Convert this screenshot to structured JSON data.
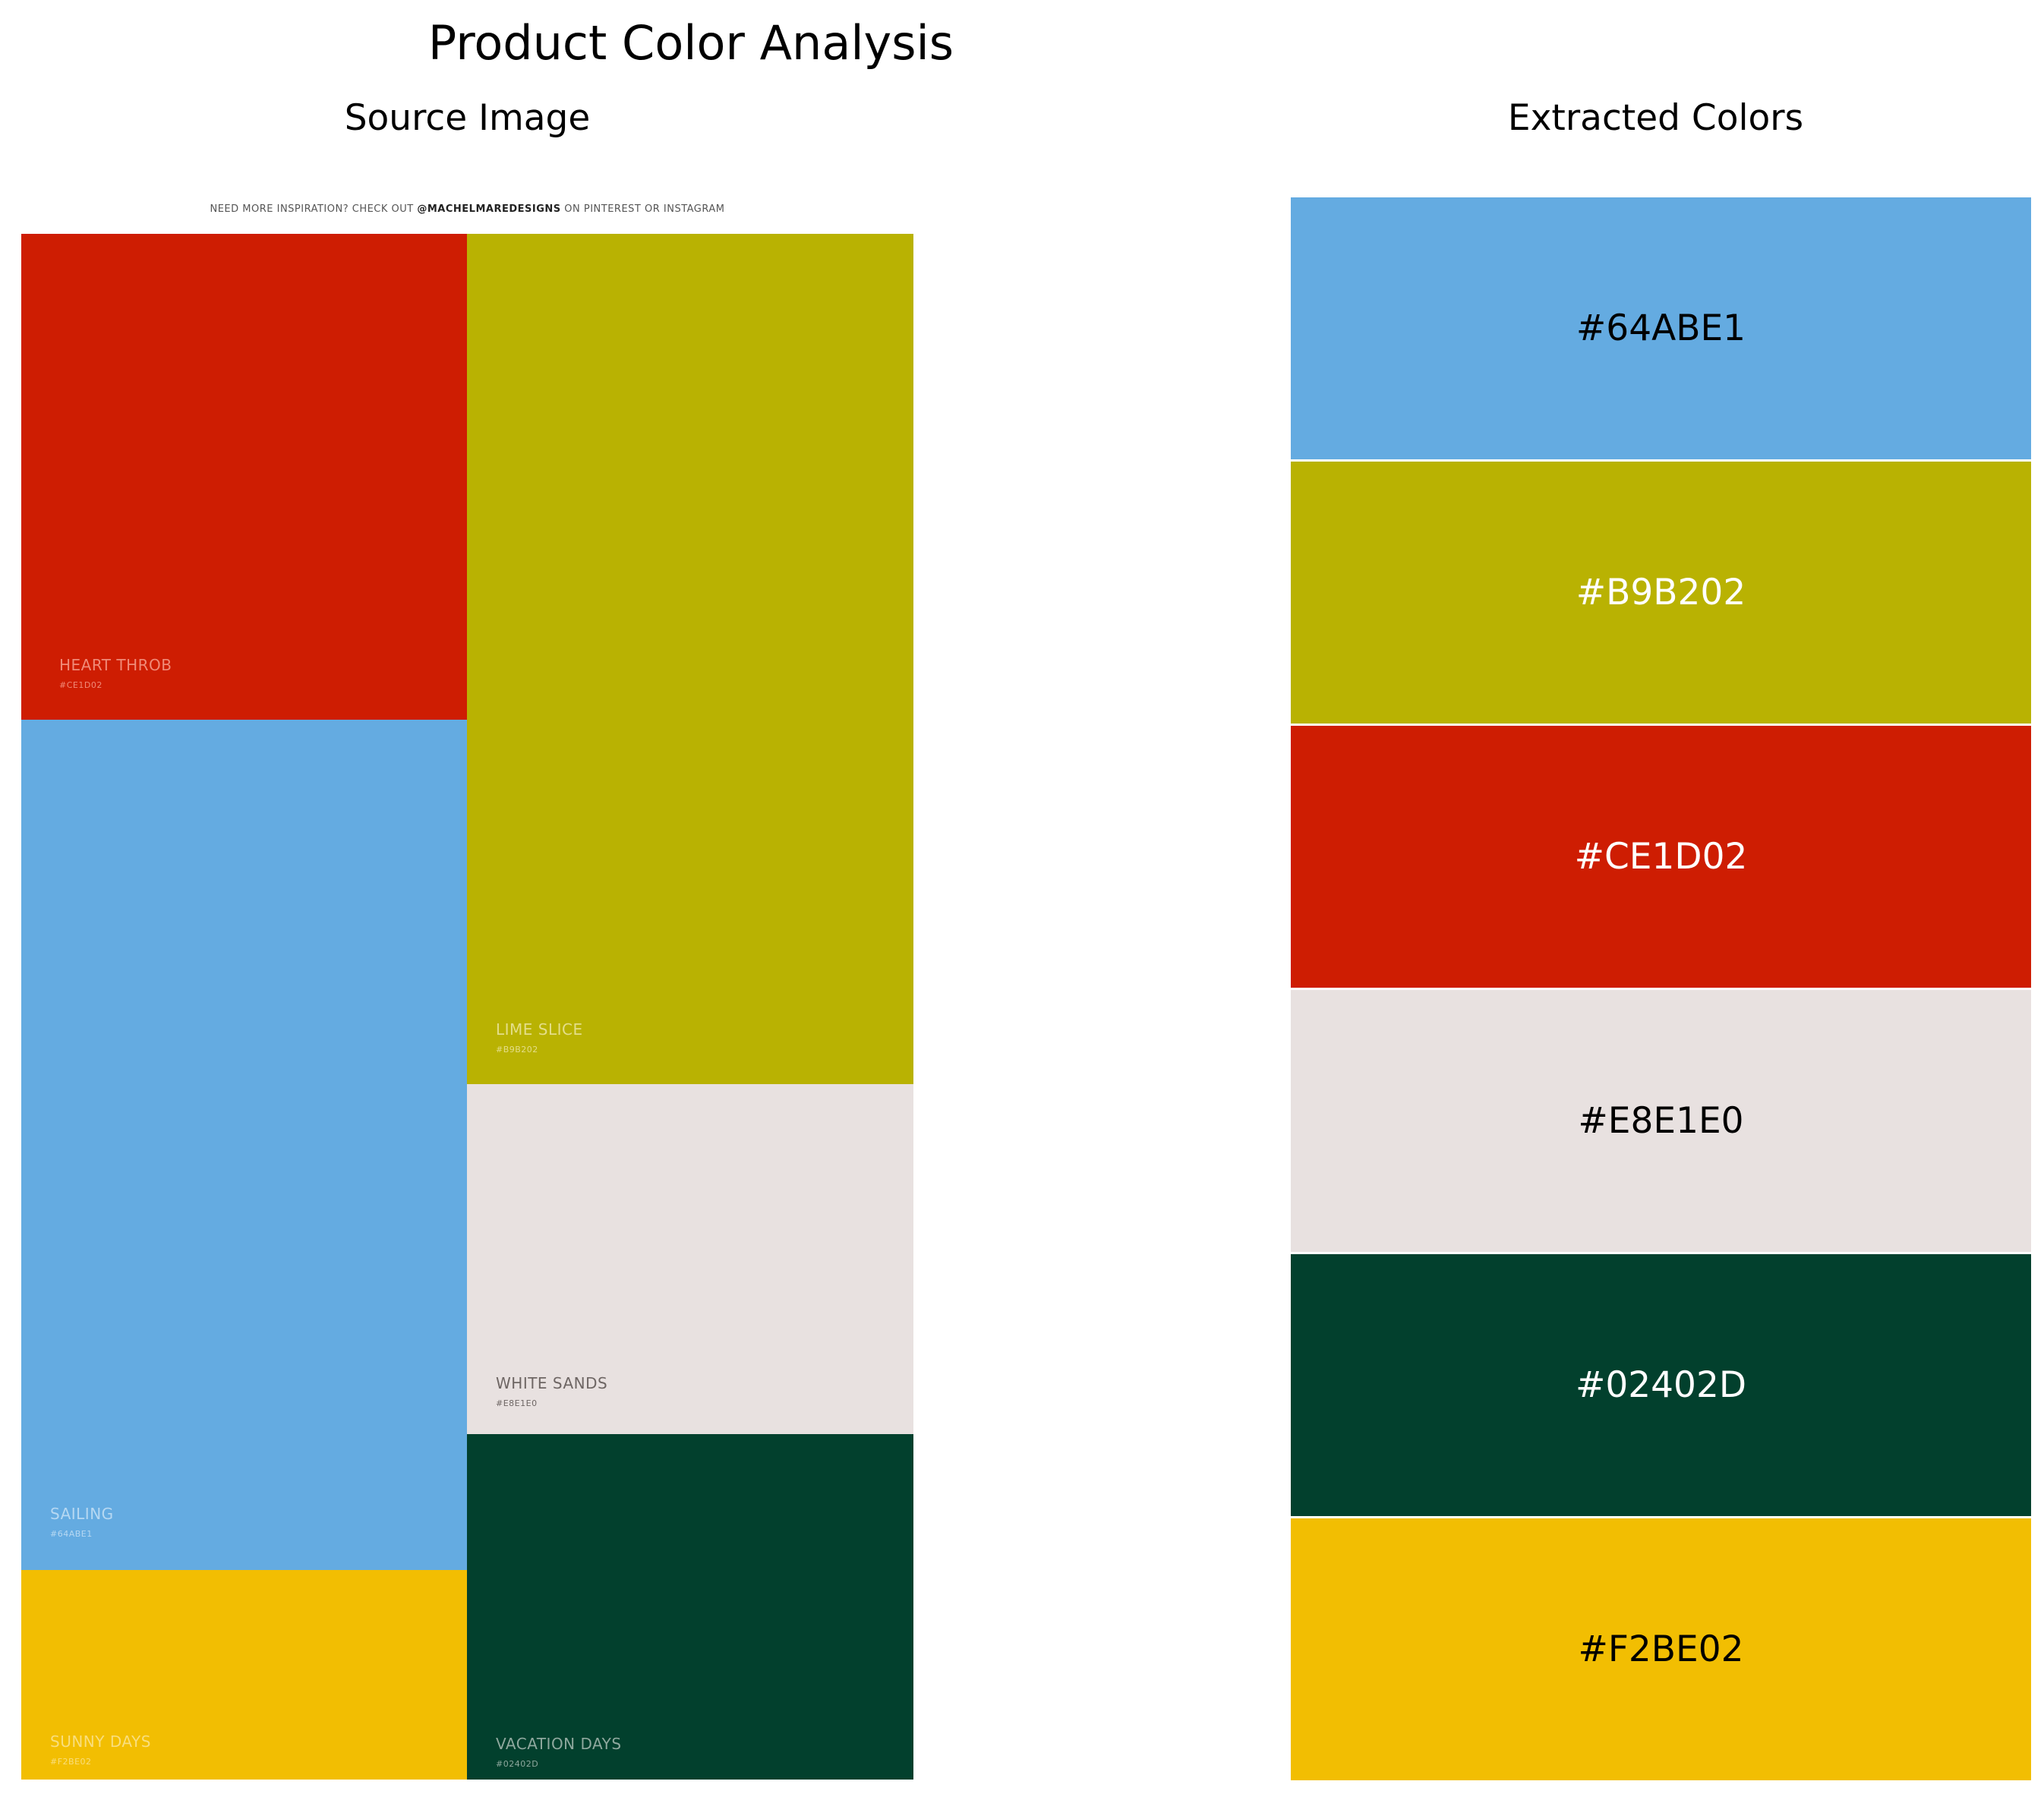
{
  "title": "Product Color Analysis",
  "source_panel": {
    "title": "Source Image",
    "banner_prefix": "NEED MORE INSPIRATION? CHECK OUT",
    "banner_handle": "@MACHELMAREDESIGNS",
    "banner_suffix": "ON PINTEREST OR INSTAGRAM",
    "blocks": [
      {
        "name": "HEART THROB",
        "code": "#CE1D02",
        "color": "#CE1D02",
        "text_color": "#F08A78"
      },
      {
        "name": "LIME SLICE",
        "code": "#B9B202",
        "color": "#B9B202",
        "text_color": "#E4DE8A"
      },
      {
        "name": "SAILING",
        "code": "#64ABE1",
        "color": "#64ABE1",
        "text_color": "#B6D8F2"
      },
      {
        "name": "WHITE SANDS",
        "code": "#E8E1E0",
        "color": "#E8E1E0",
        "text_color": "#6E6664"
      },
      {
        "name": "SUNNY DAYS",
        "code": "#F2BE02",
        "color": "#F2BE02",
        "text_color": "#F9DE7E"
      },
      {
        "name": "VACATION DAYS",
        "code": "#02402D",
        "color": "#02402D",
        "text_color": "#8FA89E"
      }
    ]
  },
  "chart_data": {
    "type": "table",
    "title": "Extracted Colors",
    "colors": [
      {
        "label": "#64ABE1",
        "color": "#64ABE1",
        "text_color": "#000000"
      },
      {
        "label": "#B9B202",
        "color": "#B9B202",
        "text_color": "#ffffff"
      },
      {
        "label": "#CE1D02",
        "color": "#CE1D02",
        "text_color": "#ffffff"
      },
      {
        "label": "#E8E1E0",
        "color": "#E8E1E0",
        "text_color": "#000000"
      },
      {
        "label": "#02402D",
        "color": "#02402D",
        "text_color": "#ffffff"
      },
      {
        "label": "#F2BE02",
        "color": "#F2BE02",
        "text_color": "#000000"
      }
    ]
  }
}
